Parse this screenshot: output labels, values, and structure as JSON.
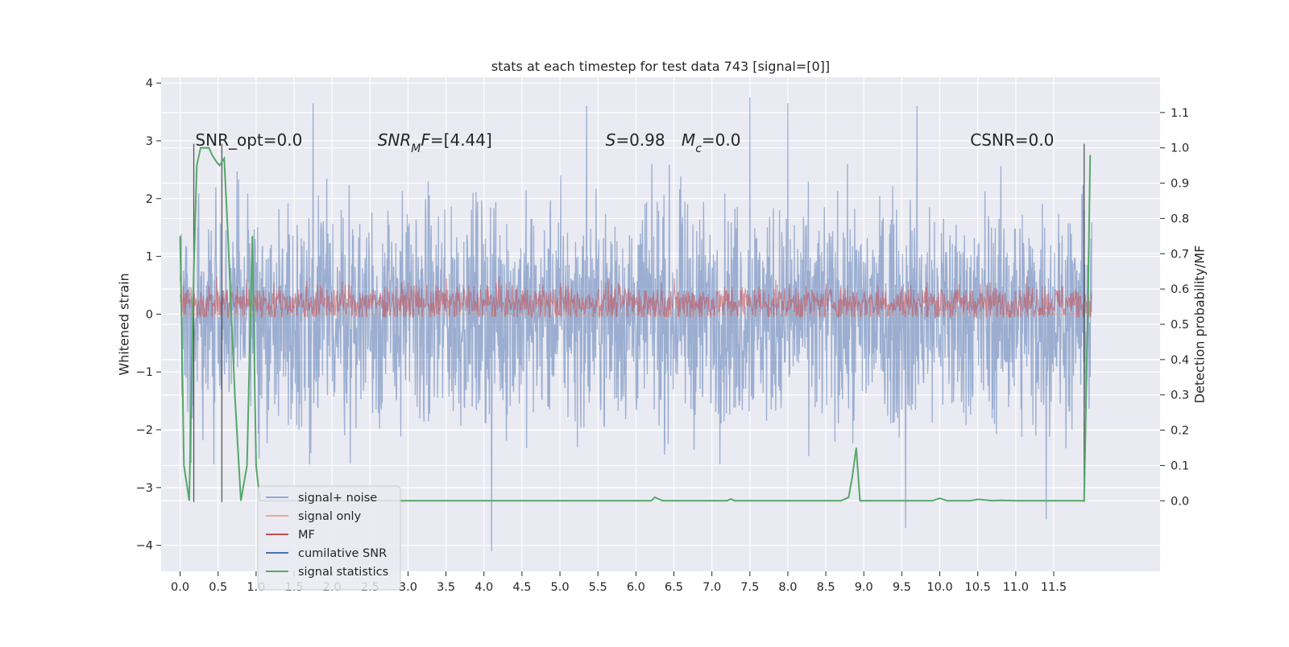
{
  "chart_data": {
    "type": "line",
    "title": "stats at each timestep for test data 743 [signal=[0]]",
    "xlabel": "",
    "ylabel": "Whitened strain",
    "y2label": "Detection probability/MF",
    "xlim": [
      -0.25,
      12.9
    ],
    "ylim": [
      -4.45,
      4.1
    ],
    "y2lim": [
      -0.2,
      1.2
    ],
    "x_ticks": [
      "0.0",
      "0.5",
      "1.0",
      "1.5",
      "2.0",
      "2.5",
      "3.0",
      "3.5",
      "4.0",
      "4.5",
      "5.0",
      "5.5",
      "6.0",
      "6.5",
      "7.0",
      "7.5",
      "8.0",
      "8.5",
      "9.0",
      "9.5",
      "10.0",
      "10.5",
      "11.0",
      "11.5"
    ],
    "y_ticks": [
      "4",
      "3",
      "2",
      "1",
      "0",
      "−1",
      "−2",
      "−3",
      "−4"
    ],
    "y2_ticks": [
      "1.1",
      "1.0",
      "0.9",
      "0.8",
      "0.7",
      "0.6",
      "0.5",
      "0.4",
      "0.3",
      "0.2",
      "0.1",
      "0.0"
    ],
    "grid": true,
    "legend_position": "lower-left",
    "annotations": [
      {
        "text": "SNR_opt=0.0",
        "x": 0.2,
        "y": 3.0
      },
      {
        "text": "SNR_MF=[4.44]",
        "x": 2.6,
        "y": 3.0
      },
      {
        "text": "S=0.98",
        "x": 5.6,
        "y": 3.0
      },
      {
        "text": "M_c=0.0",
        "x": 6.6,
        "y": 3.0
      },
      {
        "text": "CSNR=0.0",
        "x": 10.4,
        "y": 3.0
      }
    ],
    "series": [
      {
        "name": "signal+ noise",
        "color": "#4c72b0",
        "axis": "left",
        "note": "dense noise trace, roughly ±1.7 with spikes to ±3.7",
        "x_range": [
          0.0,
          12.0
        ],
        "envelope": [
          -1.7,
          1.7
        ],
        "peaks": [
          [
            1.75,
            3.65
          ],
          [
            5.35,
            3.6
          ],
          [
            7.5,
            3.75
          ],
          [
            8.0,
            3.65
          ],
          [
            9.7,
            3.6
          ],
          [
            4.1,
            -4.1
          ],
          [
            9.55,
            -3.7
          ],
          [
            11.4,
            -3.55
          ]
        ]
      },
      {
        "name": "signal only",
        "color": "#dd8452",
        "axis": "left",
        "values_note": "flat zero"
      },
      {
        "name": "MF",
        "color": "#c44e52",
        "axis": "left",
        "x_range": [
          0.0,
          12.0
        ],
        "center": 0.2,
        "envelope": [
          -0.05,
          0.7
        ]
      },
      {
        "name": "cumilative SNR",
        "color": "#4c72b0",
        "axis": "right",
        "values_note": "not visible"
      },
      {
        "name": "signal statistics",
        "color": "#55a868",
        "axis": "right",
        "x": [
          0.0,
          0.05,
          0.12,
          0.18,
          0.22,
          0.27,
          0.32,
          0.38,
          0.42,
          0.48,
          0.52,
          0.58,
          0.63,
          0.72,
          0.8,
          0.88,
          0.95,
          1.0,
          1.05,
          1.1,
          1.5,
          3.0,
          5.0,
          6.2,
          6.25,
          6.35,
          6.5,
          7.2,
          7.25,
          7.3,
          8.7,
          8.8,
          8.85,
          8.9,
          8.95,
          9.5,
          9.9,
          10.0,
          10.1,
          10.4,
          10.5,
          10.7,
          10.8,
          11.0,
          11.9,
          11.95,
          11.98
        ],
        "values": [
          0.75,
          0.1,
          0.0,
          0.65,
          0.95,
          1.0,
          1.0,
          1.0,
          0.98,
          0.96,
          0.95,
          0.97,
          0.75,
          0.3,
          0.0,
          0.1,
          0.75,
          0.1,
          0.0,
          0.0,
          0.0,
          0.0,
          0.0,
          0.0,
          0.01,
          0.0,
          0.0,
          0.0,
          0.005,
          0.0,
          0.0,
          0.01,
          0.07,
          0.15,
          0.0,
          0.0,
          0.0,
          0.007,
          0.0,
          0.0,
          0.004,
          0.0,
          0.001,
          0.0,
          0.0,
          0.55,
          0.98
        ]
      },
      {
        "name": "",
        "color": "#333333",
        "axis": "left",
        "note": "vertical markers",
        "x": [
          0.18,
          0.55,
          11.9
        ]
      }
    ]
  }
}
